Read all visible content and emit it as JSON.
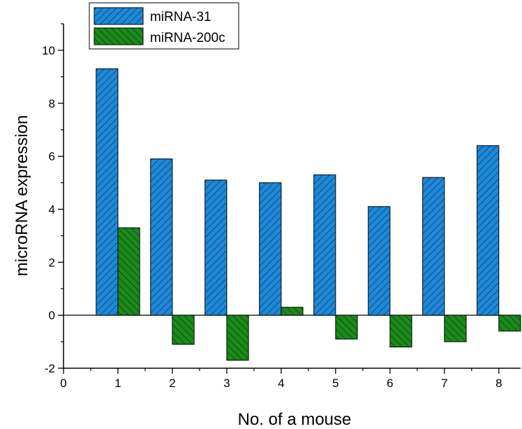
{
  "chart_data": {
    "type": "bar",
    "title": "",
    "xlabel": "No. of a mouse",
    "ylabel": "microRNA expression",
    "categories": [
      "1",
      "2",
      "3",
      "4",
      "5",
      "6",
      "7",
      "8"
    ],
    "series": [
      {
        "name": "miRNA-31",
        "values": [
          9.3,
          5.9,
          5.1,
          5.0,
          5.3,
          4.1,
          5.2,
          6.4
        ],
        "color": "#1e88d8",
        "hatch": "diagonal-up"
      },
      {
        "name": "miRNA-200c",
        "values": [
          3.3,
          -1.1,
          -1.7,
          0.3,
          -0.9,
          -1.2,
          -1.0,
          -0.6
        ],
        "color": "#1a8a1a",
        "hatch": "diagonal-down"
      }
    ],
    "xlim": [
      0,
      8.4
    ],
    "ylim": [
      -2,
      11
    ],
    "xticks": [
      "0",
      "1",
      "2",
      "3",
      "4",
      "5",
      "6",
      "7",
      "8"
    ],
    "yticks": [
      "-2",
      "0",
      "2",
      "4",
      "6",
      "8",
      "10"
    ],
    "zero_line": true,
    "grid": false,
    "legend_position": "top-left"
  }
}
